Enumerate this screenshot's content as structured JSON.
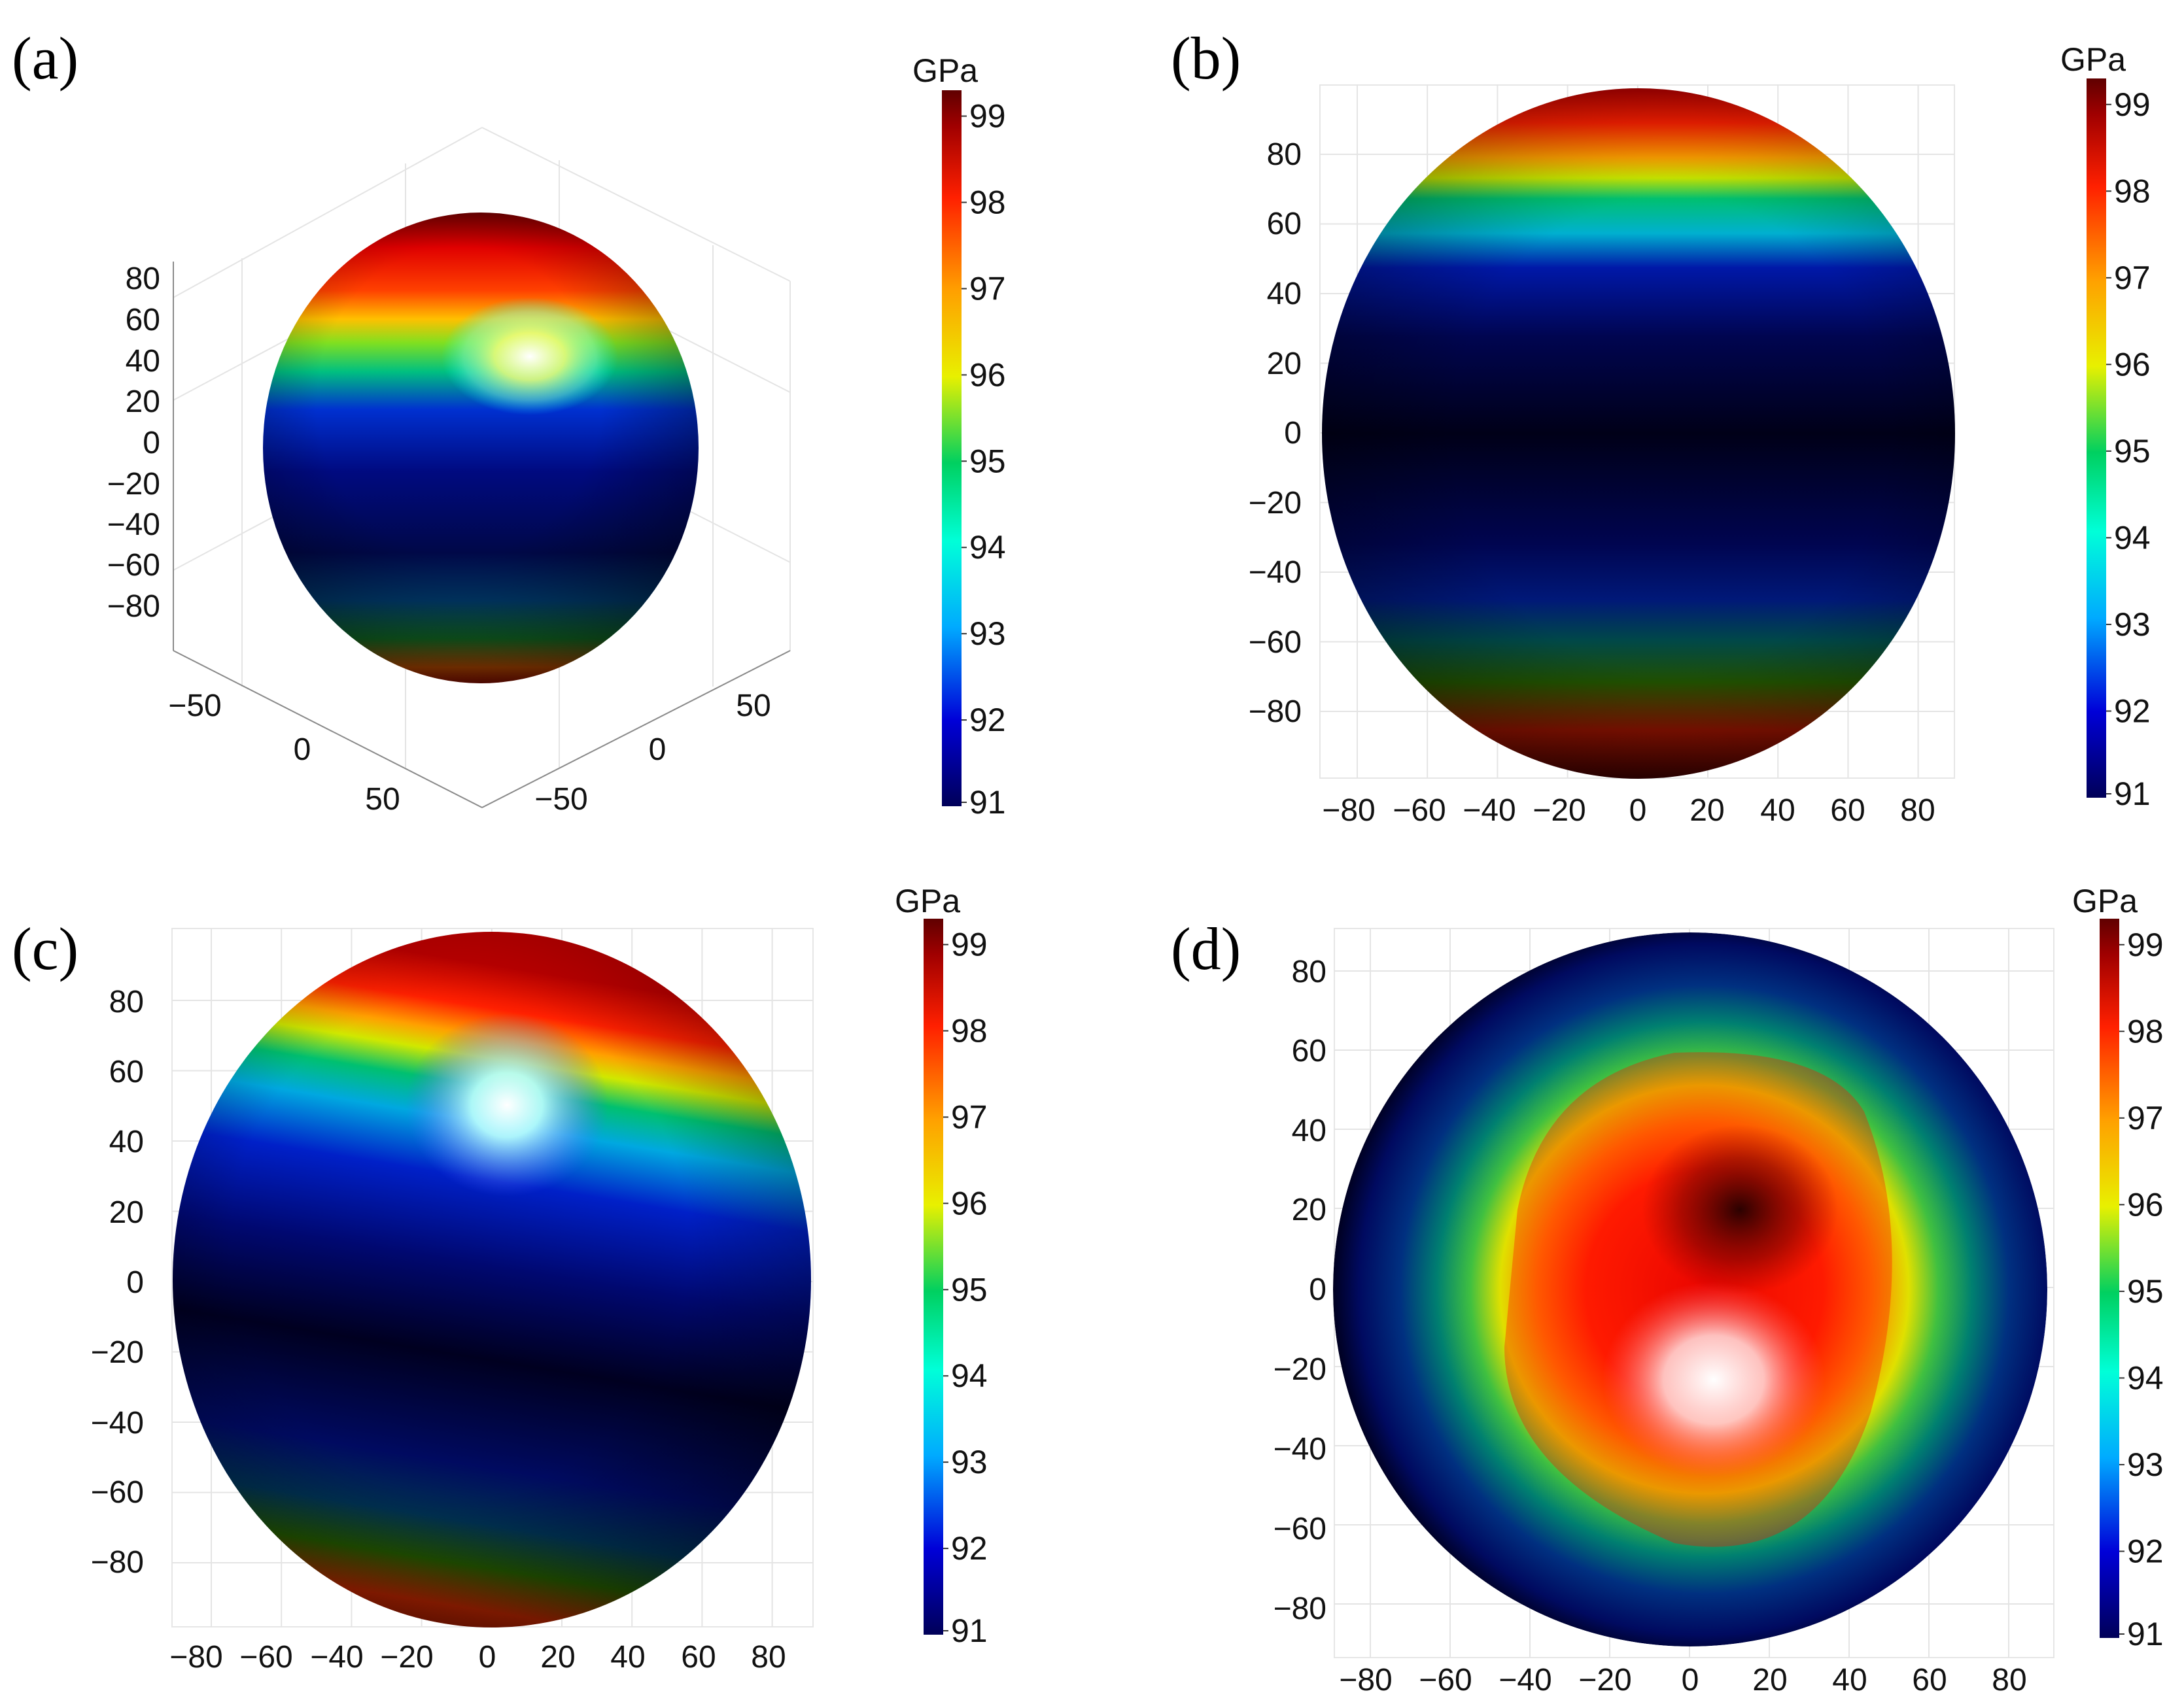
{
  "figure": {
    "colorscale": {
      "unit": "GPa",
      "ticks": [
        "91",
        "92",
        "93",
        "94",
        "95",
        "96",
        "97",
        "98",
        "99"
      ],
      "colors": [
        "#000058",
        "#0000d8",
        "#00aaff",
        "#00ffd8",
        "#00d060",
        "#e8f000",
        "#ffa000",
        "#ff2000",
        "#a00000",
        "#600000"
      ],
      "range": [
        91,
        99.3
      ]
    }
  },
  "chart_data": [
    {
      "panel": "(a)",
      "type": "heatmap",
      "view": "3d-perspective",
      "surface": "Young's modulus sphere",
      "z_ticks": [
        "80",
        "60",
        "40",
        "20",
        "0",
        "−20",
        "−40",
        "−60",
        "−80"
      ],
      "x_ticks": [
        "−50",
        "0",
        "50"
      ],
      "y_ticks": [
        "−50",
        "0",
        "50"
      ],
      "colorbar_unit": "GPa",
      "colorbar_ticks": [
        "99",
        "98",
        "97",
        "96",
        "95",
        "94",
        "93",
        "92",
        "91"
      ],
      "value_range": [
        91,
        99.3
      ]
    },
    {
      "panel": "(b)",
      "type": "heatmap",
      "view": "2d-projection",
      "x_ticks": [
        "−80",
        "−60",
        "−40",
        "−20",
        "0",
        "20",
        "40",
        "60",
        "80"
      ],
      "y_ticks": [
        "80",
        "60",
        "40",
        "20",
        "0",
        "−20",
        "−40",
        "−60",
        "−80"
      ],
      "xlim": [
        -90,
        90
      ],
      "ylim": [
        -90,
        90
      ],
      "colorbar_unit": "GPa",
      "colorbar_ticks": [
        "99",
        "98",
        "97",
        "96",
        "95",
        "94",
        "93",
        "92",
        "91"
      ],
      "value_range": [
        91,
        99.3
      ]
    },
    {
      "panel": "(c)",
      "type": "heatmap",
      "view": "2d-projection",
      "x_ticks": [
        "−80",
        "−60",
        "−40",
        "−20",
        "0",
        "20",
        "40",
        "60",
        "80"
      ],
      "y_ticks": [
        "80",
        "60",
        "40",
        "20",
        "0",
        "−20",
        "−40",
        "−60",
        "−80"
      ],
      "xlim": [
        -90,
        90
      ],
      "ylim": [
        -90,
        90
      ],
      "colorbar_unit": "GPa",
      "colorbar_ticks": [
        "99",
        "98",
        "97",
        "96",
        "95",
        "94",
        "93",
        "92",
        "91"
      ],
      "value_range": [
        91,
        99.3
      ]
    },
    {
      "panel": "(d)",
      "type": "heatmap",
      "view": "2d-projection-top",
      "x_ticks": [
        "−80",
        "−60",
        "−40",
        "−20",
        "0",
        "20",
        "40",
        "60",
        "80"
      ],
      "y_ticks": [
        "80",
        "60",
        "40",
        "20",
        "0",
        "−20",
        "−40",
        "−60",
        "−80"
      ],
      "xlim": [
        -90,
        90
      ],
      "ylim": [
        -90,
        90
      ],
      "colorbar_unit": "GPa",
      "colorbar_ticks": [
        "99",
        "98",
        "97",
        "96",
        "95",
        "94",
        "93",
        "92",
        "91"
      ],
      "value_range": [
        91,
        99.3
      ]
    }
  ]
}
